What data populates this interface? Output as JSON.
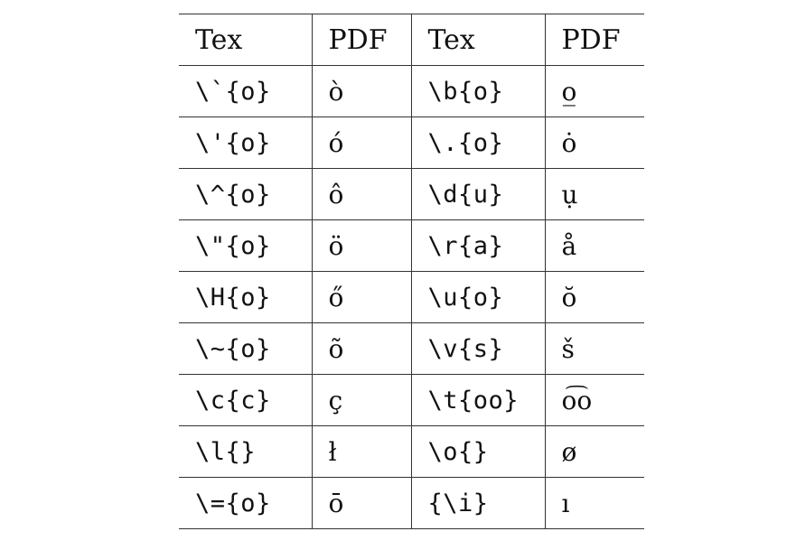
{
  "table": {
    "headers": [
      "Tex",
      "PDF",
      "Tex",
      "PDF"
    ],
    "rows": [
      {
        "tex1": "\\`{o}",
        "pdf1": "ò",
        "tex2": "\\b{o}",
        "pdf2": "o̲"
      },
      {
        "tex1": "\\'{o}",
        "pdf1": "ó",
        "tex2": "\\.{o}",
        "pdf2": "ȯ"
      },
      {
        "tex1": "\\^{o}",
        "pdf1": "ô",
        "tex2": "\\d{u}",
        "pdf2": "ụ"
      },
      {
        "tex1": "\\\"{o}",
        "pdf1": "ö",
        "tex2": "\\r{a}",
        "pdf2": "å"
      },
      {
        "tex1": "\\H{o}",
        "pdf1": "ő",
        "tex2": "\\u{o}",
        "pdf2": "ŏ"
      },
      {
        "tex1": "\\~{o}",
        "pdf1": "õ",
        "tex2": "\\v{s}",
        "pdf2": "š"
      },
      {
        "tex1": "\\c{c}",
        "pdf1": "ç",
        "tex2": "\\t{oo}",
        "pdf2": "o͡o"
      },
      {
        "tex1": "\\l{}",
        "pdf1": "ł",
        "tex2": "\\o{}",
        "pdf2": "ø"
      },
      {
        "tex1": "\\={o}",
        "pdf1": "ō",
        "tex2": "{\\i}",
        "pdf2": "ı"
      }
    ]
  }
}
